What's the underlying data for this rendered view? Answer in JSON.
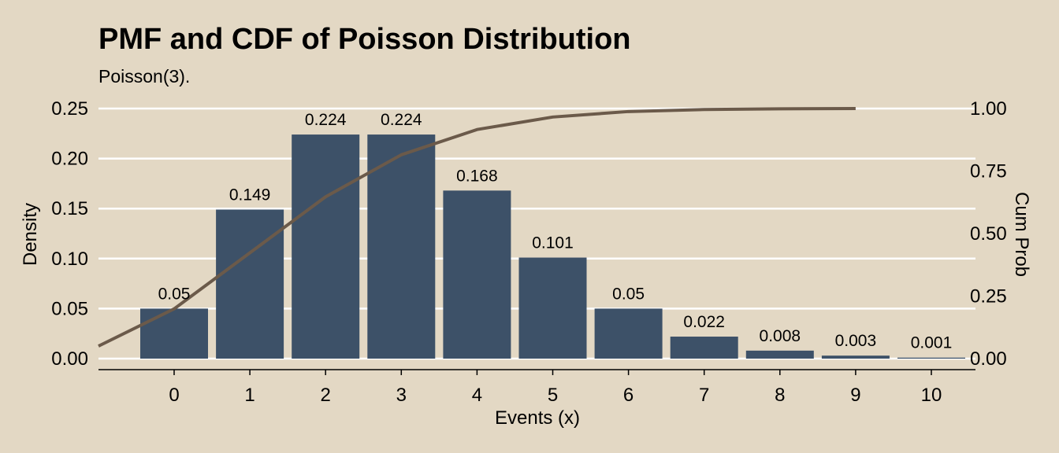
{
  "chart_data": {
    "type": "bar",
    "title": "PMF and CDF of Poisson Distribution",
    "subtitle": "Poisson(3).",
    "xlabel": "Events (x)",
    "ylabel": "Density",
    "y2label": "Cum Prob",
    "categories": [
      "0",
      "1",
      "2",
      "3",
      "4",
      "5",
      "6",
      "7",
      "8",
      "9",
      "10"
    ],
    "x": [
      0,
      1,
      2,
      3,
      4,
      5,
      6,
      7,
      8,
      9,
      10
    ],
    "values": [
      0.05,
      0.149,
      0.224,
      0.224,
      0.168,
      0.101,
      0.05,
      0.022,
      0.008,
      0.003,
      0.001
    ],
    "data_labels": [
      "0.05",
      "0.149",
      "0.224",
      "0.224",
      "0.168",
      "0.101",
      "0.05",
      "0.022",
      "0.008",
      "0.003",
      "0.001"
    ],
    "cdf": {
      "x": [
        -1,
        0,
        1,
        2,
        3,
        4,
        5,
        6,
        7,
        8,
        9
      ],
      "values": [
        0.05,
        0.199,
        0.423,
        0.647,
        0.815,
        0.916,
        0.966,
        0.988,
        0.996,
        0.999,
        1.0
      ]
    },
    "ylim": [
      0,
      0.25
    ],
    "y2lim": [
      0,
      1
    ],
    "yticks": [
      "0.00",
      "0.05",
      "0.10",
      "0.15",
      "0.20",
      "0.25"
    ],
    "y2ticks": [
      "0.00",
      "0.25",
      "0.50",
      "0.75",
      "1.00"
    ],
    "grid": true,
    "colors": {
      "background": "#e3d8c4",
      "bar": "#3d5168",
      "line": "#6b5a4a",
      "grid": "#ffffff"
    }
  }
}
